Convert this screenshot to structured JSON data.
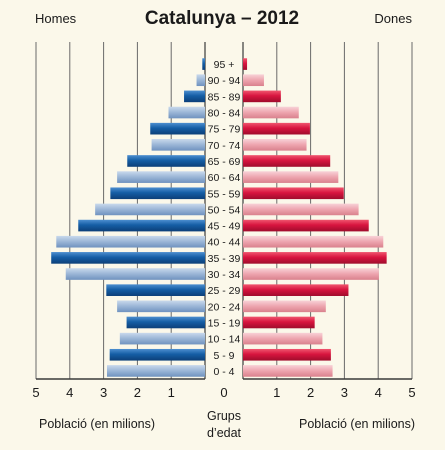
{
  "chart_data": {
    "type": "bar",
    "subtype": "population-pyramid",
    "title": "Catalunya – 2012",
    "left_label": "Homes",
    "right_label": "Dones",
    "center_label_line1": "Grups",
    "center_label_line2": "d’edat",
    "xlabel_left": "Població (en milions)",
    "xlabel_right": "Població (en milions)",
    "x_ticks": [
      5,
      4,
      3,
      2,
      1,
      0,
      1,
      2,
      3,
      4,
      5
    ],
    "xlim": [
      0,
      5
    ],
    "grid": true,
    "categories": [
      "95 +",
      "90 - 94",
      "85 - 89",
      "80 - 84",
      "75 - 79",
      "70 - 74",
      "65 - 69",
      "60 - 64",
      "55 - 59",
      "50 - 54",
      "45 - 49",
      "40 - 44",
      "35 - 39",
      "30 - 34",
      "25 - 29",
      "20 - 24",
      "15 - 19",
      "10 - 14",
      "5 - 9",
      "0 - 4"
    ],
    "series": [
      {
        "name": "Homes",
        "values": [
          0.08,
          0.25,
          0.62,
          1.08,
          1.62,
          1.58,
          2.3,
          2.6,
          2.8,
          3.25,
          3.75,
          4.4,
          4.55,
          4.12,
          2.92,
          2.6,
          2.32,
          2.52,
          2.82,
          2.9
        ],
        "dark_color": "#155ea5",
        "light_color": "#9ab5d6"
      },
      {
        "name": "Dones",
        "values": [
          0.12,
          0.62,
          1.12,
          1.65,
          1.98,
          1.88,
          2.58,
          2.82,
          2.98,
          3.42,
          3.72,
          4.15,
          4.25,
          4.02,
          3.12,
          2.45,
          2.12,
          2.35,
          2.6,
          2.65
        ],
        "dark_color": "#d8153f",
        "light_color": "#eda4ae"
      }
    ]
  }
}
